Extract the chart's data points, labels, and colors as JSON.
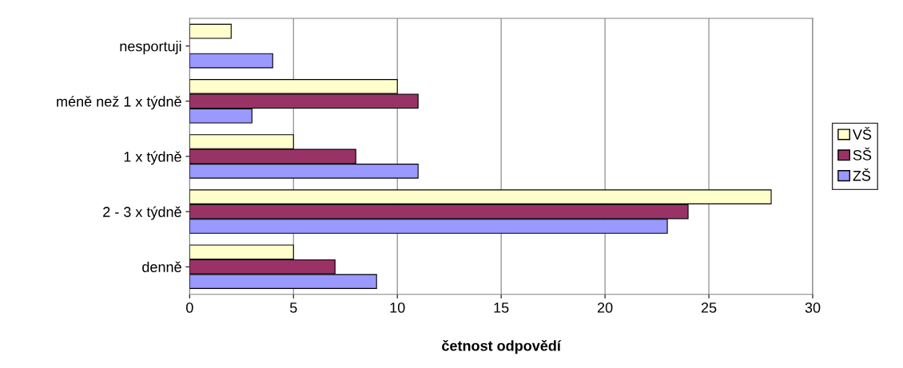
{
  "chart_data": {
    "type": "bar",
    "orientation": "horizontal",
    "xlabel": "četnost odpovědí",
    "categories": [
      "nesportuji",
      "méně než 1 x týdně",
      "1 x týdně",
      "2 - 3 x týdně",
      "denně"
    ],
    "series": [
      {
        "name": "VŠ",
        "color": "#ffffcc",
        "values": [
          2,
          10,
          5,
          28,
          5
        ]
      },
      {
        "name": "SŠ",
        "color": "#993366",
        "values": [
          0,
          11,
          8,
          24,
          7
        ]
      },
      {
        "name": "ZŠ",
        "color": "#9999ff",
        "values": [
          4,
          3,
          11,
          23,
          9
        ]
      }
    ],
    "xlim": [
      0,
      30
    ],
    "xticks": [
      0,
      5,
      10,
      15,
      20,
      25,
      30
    ],
    "grid": "x",
    "legend": "right"
  }
}
